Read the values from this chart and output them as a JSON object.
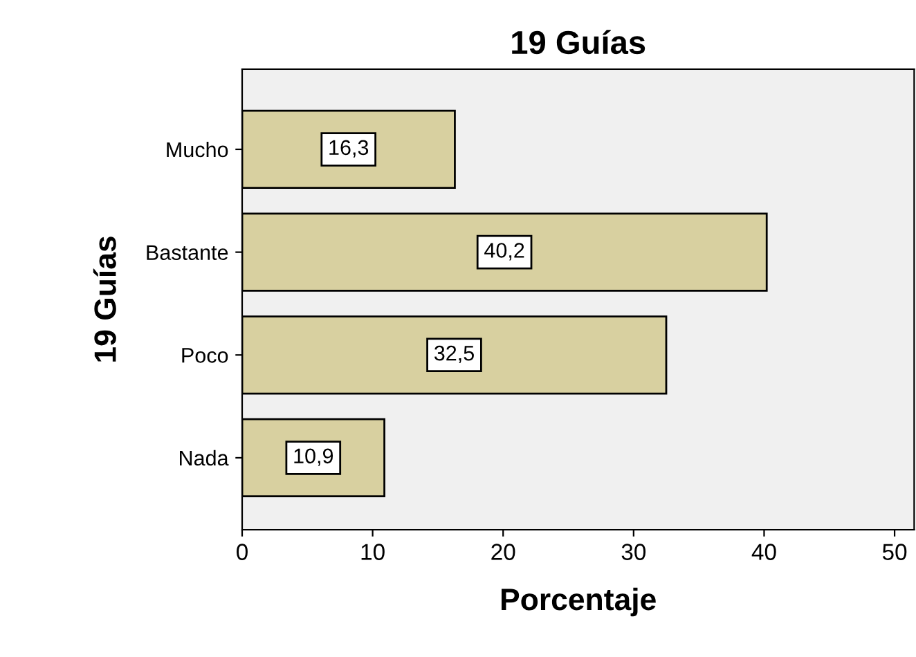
{
  "chart_data": {
    "type": "bar",
    "orientation": "horizontal",
    "title": "19 Guías",
    "xlabel": "Porcentaje",
    "ylabel": "19 Guías",
    "categories": [
      "Mucho",
      "Bastante",
      "Poco",
      "Nada"
    ],
    "values": [
      16.3,
      40.2,
      32.5,
      10.9
    ],
    "color": "#d8d0a0",
    "value_labels": [
      "16,3",
      "40,2",
      "32,5",
      "10,9"
    ],
    "xlim": [
      0,
      51.5
    ],
    "xticks": [
      0,
      10,
      20,
      30,
      40,
      50
    ],
    "grid": false,
    "legend": false
  }
}
